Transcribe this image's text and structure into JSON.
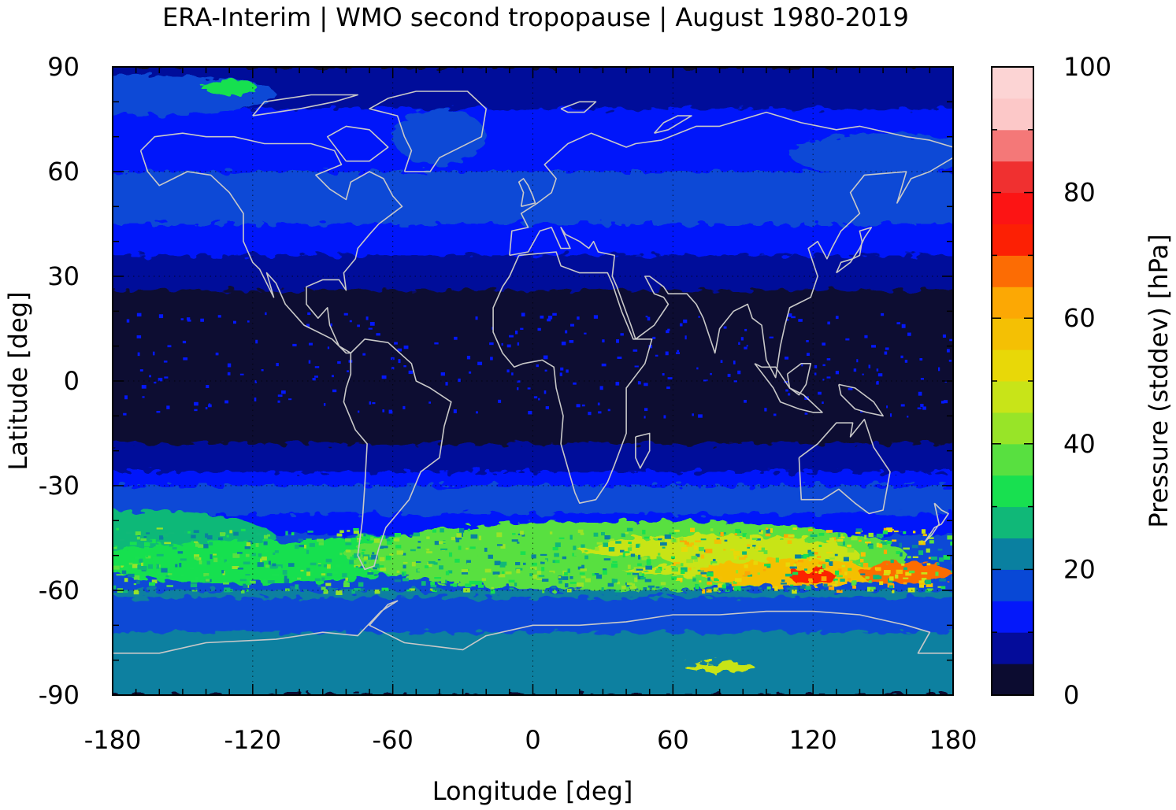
{
  "title": "ERA-Interim | WMO second tropopause | August 1980-2019",
  "map": {
    "xlabel": "Longitude [deg]",
    "ylabel": "Latitude [deg]",
    "x_ticks": [
      "-180",
      "-120",
      "-60",
      "0",
      "60",
      "120",
      "180"
    ],
    "y_ticks": [
      "90",
      "60",
      "30",
      "0",
      "-30",
      "-60",
      "-90"
    ],
    "xlim": [
      -180,
      180
    ],
    "ylim": [
      -90,
      90
    ],
    "grid": true,
    "coastlines": true,
    "colors": {
      "coastline": "#c8c8c8",
      "background": "#0c0c30"
    }
  },
  "colorbar": {
    "label": "Pressure (stddev) [hPa]",
    "ticks": [
      "0",
      "20",
      "40",
      "60",
      "80",
      "100"
    ],
    "range": [
      0,
      100
    ],
    "step": 5,
    "colors": [
      "#0c0c30",
      "#040c9a",
      "#0418fa",
      "#0848d6",
      "#0a80a0",
      "#10b878",
      "#18e050",
      "#58e040",
      "#98e428",
      "#c8e418",
      "#e8d808",
      "#f4c004",
      "#fca804",
      "#fc6c04",
      "#fc2004",
      "#fc1414",
      "#f03030",
      "#f47878",
      "#fcc8c8",
      "#fcd4d4"
    ]
  }
}
